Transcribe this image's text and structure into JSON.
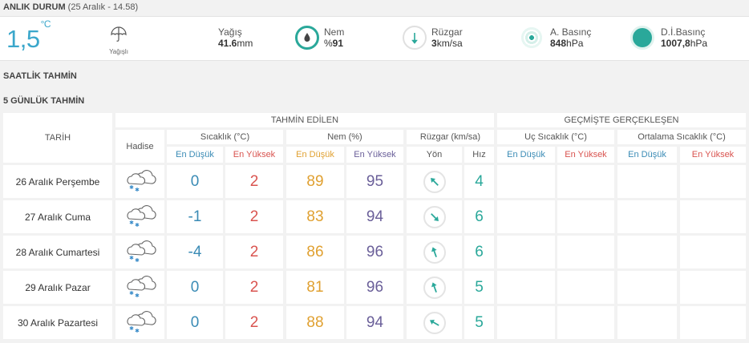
{
  "header": {
    "title": "ANLIK DURUM",
    "timestamp": "(25 Aralık - 14.58)"
  },
  "current": {
    "temperature": "1,5",
    "unit": "°C",
    "condition": "Yağışlı",
    "precip": {
      "label": "Yağış",
      "value": "41.6",
      "unit": "mm"
    },
    "humidity": {
      "label": "Nem",
      "prefix": "%",
      "value": "91"
    },
    "wind": {
      "label": "Rüzgar",
      "value": "3",
      "unit": "km/sa"
    },
    "pressure": {
      "label": "A. Basınç",
      "value": "848",
      "unit": "hPa"
    },
    "sea_pressure": {
      "label": "D.İ.Basınç",
      "value": "1007,8",
      "unit": "hPa"
    }
  },
  "sections": {
    "hourly": "SAATLİK TAHMİN",
    "daily": "5 GÜNLÜK TAHMİN"
  },
  "table": {
    "date_header": "TARİH",
    "event_header": "Hadise",
    "forecast_header": "TAHMİN EDİLEN",
    "past_header": "GEÇMİŞTE GERÇEKLEŞEN",
    "temp_header": "Sıcaklık (°C)",
    "humidity_header": "Nem (%)",
    "wind_header": "Rüzgar (km/sa)",
    "extreme_header": "Uç Sıcaklık (°C)",
    "avg_header": "Ortalama Sıcaklık (°C)",
    "min_label": "En Düşük",
    "max_label": "En Yüksek",
    "dir_label": "Yön",
    "speed_label": "Hız",
    "rows": [
      {
        "date": "26 Aralık Perşembe",
        "t_min": "0",
        "t_max": "2",
        "h_min": "89",
        "h_max": "95",
        "wind_dir": 315,
        "wind_speed": "4"
      },
      {
        "date": "27 Aralık Cuma",
        "t_min": "-1",
        "t_max": "2",
        "h_min": "83",
        "h_max": "94",
        "wind_dir": 135,
        "wind_speed": "6"
      },
      {
        "date": "28 Aralık Cumartesi",
        "t_min": "-4",
        "t_max": "2",
        "h_min": "86",
        "h_max": "96",
        "wind_dir": 340,
        "wind_speed": "6"
      },
      {
        "date": "29 Aralık Pazar",
        "t_min": "0",
        "t_max": "2",
        "h_min": "81",
        "h_max": "96",
        "wind_dir": 340,
        "wind_speed": "5"
      },
      {
        "date": "30 Aralık Pazartesi",
        "t_min": "0",
        "t_max": "2",
        "h_min": "88",
        "h_max": "94",
        "wind_dir": 300,
        "wind_speed": "5"
      }
    ]
  },
  "colors": {
    "accent": "#3ba7cb",
    "teal": "#2aa89a",
    "low": "#3a8bb5",
    "high": "#d9534f",
    "orange": "#e0a030",
    "purple": "#6a5f99"
  },
  "icons": {
    "condition": "umbrella-icon",
    "humidity": "drop-icon",
    "wind": "wind-direction-icon",
    "pressure": "pressure-icon",
    "sea_pressure": "sea-pressure-icon",
    "event": "snow-cloud-icon"
  }
}
